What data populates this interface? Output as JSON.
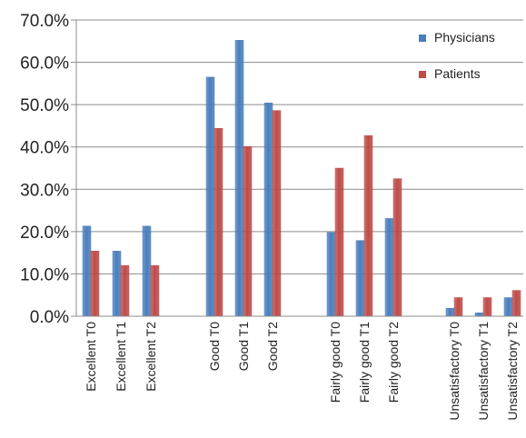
{
  "chart_data": {
    "type": "bar",
    "categories": [
      "Excellent T0",
      "Excellent T1",
      "Excellent T2",
      "Good T0",
      "Good T1",
      "Good T2",
      "Fairly good T0",
      "Fairly good T1",
      "Fairly good T2",
      "Unsatisfactory T0",
      "Unsatisfactory T1",
      "Unsatisfactory T2"
    ],
    "series": [
      {
        "name": "Physicians",
        "color": "#4a7ebb",
        "values": [
          21.3,
          15.4,
          21.3,
          56.5,
          65.2,
          50.4,
          19.8,
          17.9,
          23.1,
          1.9,
          0.8,
          4.4
        ]
      },
      {
        "name": "Patients",
        "color": "#be4b48",
        "values": [
          15.4,
          12.0,
          12.0,
          44.4,
          40.1,
          48.6,
          35.0,
          42.7,
          32.5,
          4.4,
          4.4,
          6.1
        ]
      }
    ],
    "ylim": [
      0,
      70
    ],
    "yticks": [
      "0.0%",
      "10.0%",
      "20.0%",
      "30.0%",
      "40.0%",
      "50.0%",
      "60.0%",
      "70.0%"
    ],
    "grid": true,
    "legend_position": "top-right",
    "title": "",
    "xlabel": "",
    "ylabel": ""
  }
}
